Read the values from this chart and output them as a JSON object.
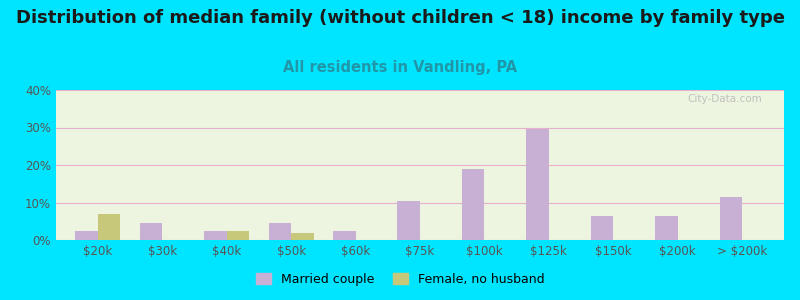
{
  "title": "Distribution of median family (without children < 18) income by family type",
  "subtitle": "All residents in Vandling, PA",
  "categories": [
    "$20k",
    "$30k",
    "$40k",
    "$50k",
    "$60k",
    "$75k",
    "$100k",
    "$125k",
    "$150k",
    "$200k",
    "> $200k"
  ],
  "married_couple": [
    2.5,
    4.5,
    2.5,
    4.5,
    2.5,
    10.5,
    19.0,
    29.5,
    6.5,
    6.5,
    11.5
  ],
  "female_no_husband": [
    7.0,
    0,
    2.5,
    2.0,
    0,
    0,
    0,
    0,
    0,
    0,
    0
  ],
  "married_color": "#c8afd4",
  "female_color": "#c8c87a",
  "background_outer": "#00e5ff",
  "ylim": [
    0,
    40
  ],
  "yticks": [
    0,
    10,
    20,
    30,
    40
  ],
  "bar_width": 0.35,
  "title_fontsize": 13,
  "subtitle_fontsize": 10.5,
  "subtitle_color": "#2196a8",
  "watermark": "City-Data.com"
}
